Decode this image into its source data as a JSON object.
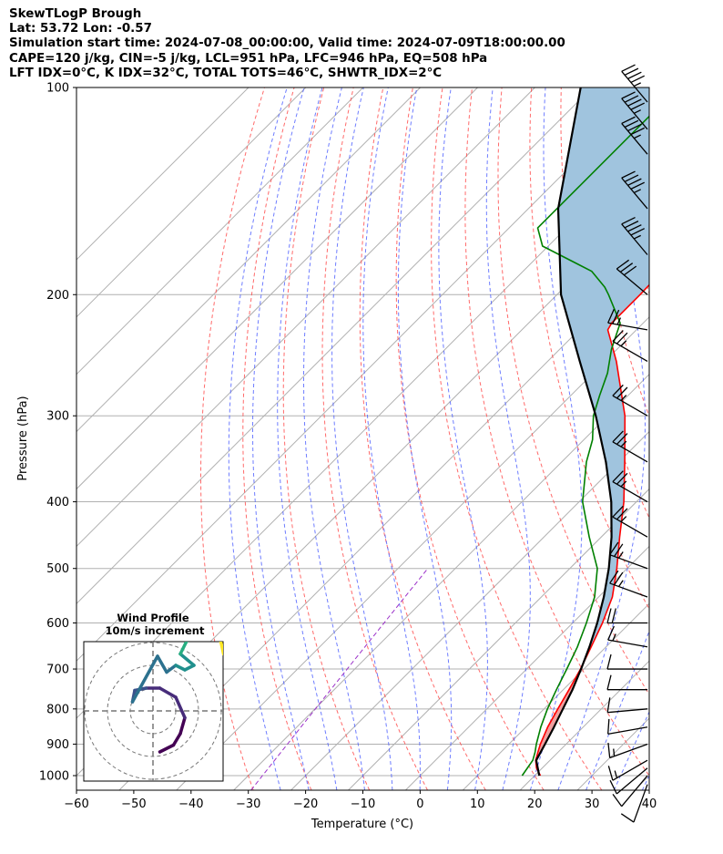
{
  "header": {
    "line1": "SkewTLogP Brough",
    "line2": "Lat: 53.72   Lon: -0.57",
    "line3": "Simulation start time: 2024-07-08_00:00:00, Valid time: 2024-07-09T18:00:00.00",
    "line4": "CAPE=120 j/kg, CIN=-5 j/kg, LCL=951 hPa, LFC=946 hPa, EQ=508 hPa",
    "line5": "LFT IDX=0$^∘$C, K IDX=32$^∘$C, TOTAL TOTS=46$^∘$C, SHWTR_IDX=2$^∘$C"
  },
  "chart_data": {
    "type": "line",
    "subtype": "skew-t log-p",
    "title": "",
    "xlabel": "Temperature ($^∘$C)",
    "ylabel": "Pressure (hPa)",
    "xlim": [
      -60,
      40
    ],
    "ylim": [
      1050,
      100
    ],
    "yscale": "log",
    "x_ticks": [
      -60,
      -50,
      -40,
      -30,
      -20,
      -10,
      0,
      10,
      20,
      30,
      40
    ],
    "y_ticks": [
      100,
      200,
      300,
      400,
      500,
      600,
      700,
      800,
      900,
      1000
    ],
    "grid": true,
    "series": [
      {
        "role": "temperature",
        "color": "#ff0000",
        "p": [
          1000,
          975,
          950,
          925,
          900,
          850,
          800,
          750,
          700,
          650,
          600,
          550,
          500,
          450,
          400,
          350,
          300,
          250,
          225,
          220,
          210,
          200,
          180,
          165,
          155,
          140,
          125,
          115,
          105,
          100
        ],
        "t": [
          21,
          19,
          17.5,
          16.5,
          15.5,
          13.8,
          12.4,
          11,
          9.4,
          7.4,
          5.2,
          2.4,
          -1.8,
          -6.8,
          -12.2,
          -19,
          -27,
          -38,
          -45,
          -45.5,
          -45.5,
          -45.5,
          -45.8,
          -46.2,
          -47,
          -49,
          -51,
          -54,
          -55.5,
          -55.5
        ]
      },
      {
        "role": "dewpoint",
        "color": "#008000",
        "p": [
          1000,
          950,
          925,
          900,
          850,
          800,
          750,
          700,
          650,
          600,
          550,
          500,
          450,
          400,
          350,
          325,
          300,
          280,
          260,
          240,
          220,
          200,
          195,
          185,
          170,
          160,
          100
        ],
        "t": [
          17.8,
          17,
          16,
          14.8,
          12.6,
          10.6,
          8.8,
          7,
          5,
          2.4,
          -0.7,
          -5.2,
          -12.1,
          -19.4,
          -25.7,
          -28.5,
          -32.5,
          -35,
          -37.5,
          -41,
          -44,
          -51,
          -53,
          -58,
          -71,
          -75,
          -75
        ]
      },
      {
        "role": "parcel",
        "color": "#000000",
        "p": [
          1000,
          950,
          900,
          850,
          800,
          750,
          700,
          650,
          600,
          550,
          500,
          450,
          400,
          350,
          300,
          250,
          200,
          150,
          100
        ],
        "t": [
          20.8,
          17.6,
          16.3,
          14.9,
          13.3,
          11.6,
          9.5,
          7.1,
          4.3,
          0.9,
          -3.2,
          -8.2,
          -14.4,
          -22.3,
          -32.1,
          -44.4,
          -59.3,
          -74.8,
          -92
        ]
      }
    ],
    "shading": [
      {
        "name": "CAPE",
        "color": "#a0c4de"
      },
      {
        "name": "CIN",
        "color": "#f0a0a0"
      }
    ],
    "wind_barbs": {
      "p": [
        1030,
        1000,
        975,
        950,
        900,
        850,
        800,
        750,
        700,
        650,
        600,
        550,
        500,
        450,
        400,
        350,
        300,
        250,
        225,
        200,
        175,
        150,
        125,
        115,
        105
      ],
      "speed_kt": [
        10,
        12,
        14,
        15,
        15,
        12,
        10,
        10,
        12,
        15,
        20,
        25,
        25,
        25,
        25,
        25,
        25,
        25,
        25,
        30,
        45,
        45,
        45,
        45,
        45
      ],
      "direction_deg": [
        200,
        220,
        230,
        240,
        250,
        260,
        265,
        270,
        270,
        280,
        270,
        290,
        290,
        300,
        300,
        300,
        300,
        300,
        280,
        310,
        320,
        320,
        320,
        320,
        320
      ]
    },
    "inset": {
      "title_line1": "Wind Profile",
      "title_line2": "10m/s increment",
      "type": "hodograph",
      "colormap": "viridis",
      "u": [
        0.3,
        0.9,
        1.2,
        1.4,
        1.0,
        0.3,
        -0.3,
        -0.8,
        -0.9,
        0.2,
        0.6,
        1.0,
        1.4,
        1.8,
        1.2,
        1.5,
        0.8,
        0.4,
        1.1,
        1.7,
        2.2,
        2.7,
        2.6,
        2.9,
        3.1
      ],
      "v": [
        -1.8,
        -1.5,
        -1.0,
        -0.3,
        0.6,
        1.0,
        1.0,
        0.9,
        0.4,
        2.4,
        1.7,
        2.0,
        1.8,
        2.0,
        2.5,
        3.1,
        3.6,
        4.1,
        4.2,
        4.4,
        4.4,
        4.0,
        3.6,
        3.4,
        2.5
      ]
    }
  }
}
